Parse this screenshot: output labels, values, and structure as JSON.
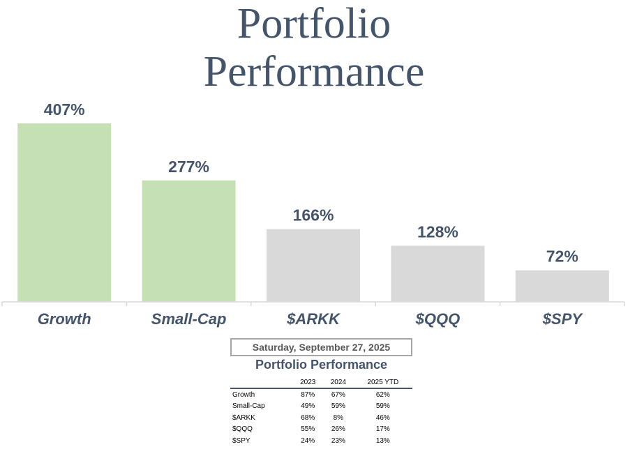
{
  "title_lines": [
    "Portfolio",
    "Performance"
  ],
  "chart_data": {
    "type": "bar",
    "title": "Portfolio Performance",
    "categories": [
      "Growth",
      "Small-Cap",
      "$ARKK",
      "$QQQ",
      "$SPY"
    ],
    "values": [
      407,
      277,
      166,
      128,
      72
    ],
    "data_labels": [
      "407%",
      "277%",
      "166%",
      "128%",
      "72%"
    ],
    "bar_colors": [
      "#c5e0b4",
      "#c5e0b4",
      "#d9d9d9",
      "#d9d9d9",
      "#d9d9d9"
    ],
    "label_color": "#44546a",
    "ylim": [
      0,
      407
    ],
    "grid": false
  },
  "table": {
    "date": "Saturday, September 27, 2025",
    "title": "Portfolio Performance",
    "headers": [
      "",
      "2023",
      "2024",
      "2025 YTD"
    ],
    "rows": [
      [
        "Growth",
        "87%",
        "67%",
        "62%"
      ],
      [
        "Small-Cap",
        "49%",
        "59%",
        "59%"
      ],
      [
        "$ARKK",
        "68%",
        "8%",
        "46%"
      ],
      [
        "$QQQ",
        "55%",
        "26%",
        "17%"
      ],
      [
        "$SPY",
        "24%",
        "23%",
        "13%"
      ]
    ]
  }
}
